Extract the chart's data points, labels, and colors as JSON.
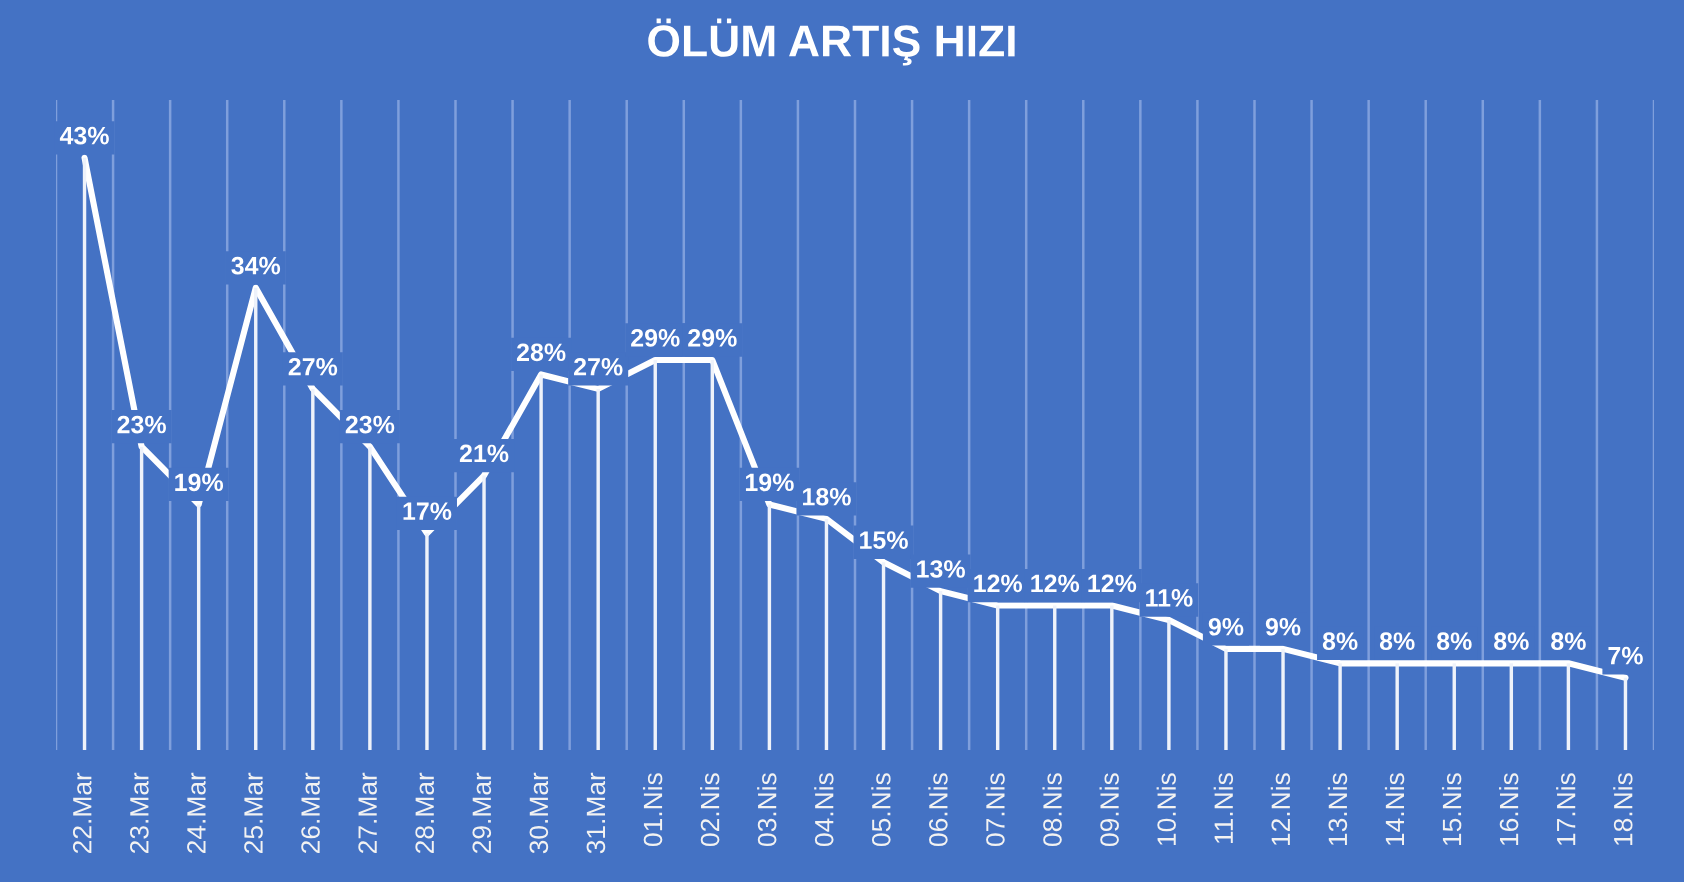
{
  "chart_data": {
    "type": "line",
    "title": "ÖLÜM ARTIŞ HIZI",
    "categories": [
      "22.Mar",
      "23.Mar",
      "24.Mar",
      "25.Mar",
      "26.Mar",
      "27.Mar",
      "28.Mar",
      "29.Mar",
      "30.Mar",
      "31.Mar",
      "01.Nis",
      "02.Nis",
      "03.Nis",
      "04.Nis",
      "05.Nis",
      "06.Nis",
      "07.Nis",
      "08.Nis",
      "09.Nis",
      "10.Nis",
      "11.Nis",
      "12.Nis",
      "13.Nis",
      "14.Nis",
      "15.Nis",
      "16.Nis",
      "17.Nis",
      "18.Nis"
    ],
    "series": [
      {
        "color": "#ffffff",
        "values": [
          43,
          23,
          19,
          34,
          27,
          23,
          17,
          21,
          28,
          27,
          29,
          29,
          19,
          18,
          15,
          13,
          12,
          12,
          12,
          11,
          9,
          9,
          8,
          8,
          8,
          8,
          8,
          7
        ],
        "value_labels": [
          "43%",
          "23%",
          "19%",
          "34%",
          "27%",
          "23%",
          "17%",
          "21%",
          "28%",
          "27%",
          "29%",
          "29%",
          "19%",
          "18%",
          "15%",
          "13%",
          "12%",
          "12%",
          "12%",
          "11%",
          "9%",
          "9%",
          "8%",
          "8%",
          "8%",
          "8%",
          "8%",
          "7%"
        ]
      },
      {
        "type": "bar",
        "color": "#eef2fa",
        "values": [
          43,
          23,
          19,
          34,
          27,
          23,
          17,
          21,
          28,
          27,
          29,
          29,
          19,
          18,
          15,
          13,
          12,
          12,
          12,
          11,
          9,
          9,
          8,
          8,
          8,
          8,
          8,
          7
        ]
      }
    ],
    "ylim": [
      2,
      47
    ],
    "grid": "x",
    "tick_labels": "x",
    "marker": "none",
    "line_style": "solid"
  }
}
